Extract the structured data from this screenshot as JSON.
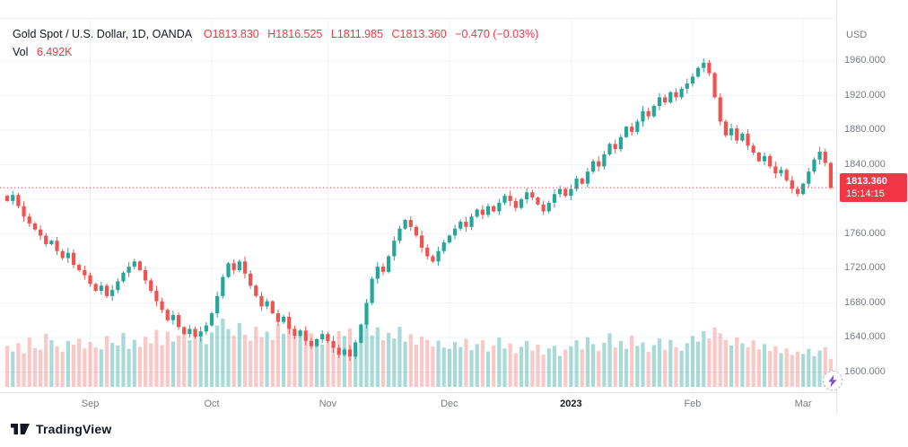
{
  "colors": {
    "up": "#26a69a",
    "down": "#ef5350",
    "accent_red": "#F23645",
    "vol_up": "rgba(38,166,154,0.40)",
    "vol_down": "rgba(239,83,80,0.32)",
    "grid": "#f0f3fa",
    "axis_text": "#787b86",
    "text": "#131722",
    "axis_border": "#e0e3eb",
    "bolt_purple": "#7e57c2"
  },
  "chart_data": {
    "type": "candlestick",
    "title": "Gold Spot / U.S. Dollar, 1D, OANDA",
    "legend": {
      "symbol": "Gold Spot / U.S. Dollar, 1D, OANDA",
      "o": "O1813.830",
      "h": "H1816.525",
      "l": "L1811.985",
      "c": "C1813.360",
      "change": "−0.470 (−0.03%)",
      "vol_label": "Vol",
      "vol_value": "6.492K"
    },
    "price_line": {
      "price": 1813.36,
      "display": "1813.360",
      "countdown": "15:14:15"
    },
    "y_axis": {
      "currency": "USD",
      "ticks": [
        1960,
        1920,
        1880,
        1840,
        1760,
        1720,
        1680,
        1640,
        1600
      ],
      "grid_min": 1600,
      "grid_max": 1960,
      "grid_step": 40
    },
    "x_axis": {
      "labels": [
        {
          "text": "Sep",
          "index": 15
        },
        {
          "text": "Oct",
          "index": 37
        },
        {
          "text": "Nov",
          "index": 58
        },
        {
          "text": "Dec",
          "index": 80
        },
        {
          "text": "2023",
          "index": 102,
          "year": true
        },
        {
          "text": "Feb",
          "index": 124
        },
        {
          "text": "Mar",
          "index": 144
        }
      ]
    },
    "closes": [
      1798,
      1805,
      1792,
      1780,
      1772,
      1765,
      1758,
      1748,
      1752,
      1740,
      1732,
      1738,
      1724,
      1718,
      1712,
      1702,
      1694,
      1700,
      1688,
      1695,
      1705,
      1715,
      1722,
      1728,
      1718,
      1706,
      1694,
      1682,
      1672,
      1660,
      1666,
      1652,
      1644,
      1650,
      1641,
      1647,
      1654,
      1668,
      1688,
      1710,
      1726,
      1718,
      1728,
      1714,
      1700,
      1688,
      1676,
      1682,
      1668,
      1658,
      1664,
      1650,
      1642,
      1648,
      1636,
      1630,
      1638,
      1644,
      1636,
      1628,
      1620,
      1626,
      1618,
      1634,
      1655,
      1680,
      1708,
      1722,
      1716,
      1734,
      1752,
      1766,
      1776,
      1768,
      1758,
      1744,
      1734,
      1728,
      1740,
      1750,
      1758,
      1766,
      1774,
      1768,
      1780,
      1788,
      1782,
      1792,
      1786,
      1796,
      1804,
      1798,
      1790,
      1800,
      1808,
      1802,
      1794,
      1786,
      1796,
      1806,
      1812,
      1804,
      1812,
      1824,
      1818,
      1832,
      1844,
      1838,
      1852,
      1864,
      1858,
      1872,
      1884,
      1878,
      1890,
      1902,
      1896,
      1908,
      1918,
      1912,
      1924,
      1918,
      1928,
      1934,
      1942,
      1952,
      1958,
      1946,
      1918,
      1890,
      1874,
      1882,
      1868,
      1876,
      1862,
      1854,
      1844,
      1850,
      1838,
      1830,
      1834,
      1822,
      1812,
      1806,
      1818,
      1832,
      1846,
      1855,
      1842,
      1813.36
    ],
    "volumes": [
      9.5,
      8.2,
      10.1,
      7.8,
      11.4,
      9.0,
      8.6,
      12.3,
      10.8,
      9.4,
      8.1,
      10.6,
      9.8,
      11.2,
      8.9,
      10.4,
      9.1,
      8.7,
      11.8,
      10.2,
      9.6,
      12.5,
      8.8,
      10.9,
      9.3,
      11.6,
      10.1,
      13.2,
      9.7,
      12.8,
      10.5,
      11.9,
      13.6,
      10.8,
      12.2,
      11.4,
      9.9,
      12.6,
      14.2,
      15.8,
      13.4,
      11.9,
      14.8,
      12.1,
      10.7,
      13.9,
      11.5,
      12.8,
      10.9,
      14.5,
      12.3,
      15.2,
      11.8,
      13.1,
      10.6,
      12.4,
      11.1,
      9.8,
      11.5,
      10.2,
      12.9,
      11.8,
      13.5,
      10.4,
      12.1,
      14.6,
      11.9,
      13.8,
      10.8,
      12.5,
      11.2,
      13.9,
      10.5,
      12.2,
      9.8,
      11.6,
      10.9,
      9.4,
      10.7,
      9.1,
      8.8,
      10.4,
      9.2,
      11.1,
      8.5,
      9.9,
      10.8,
      8.2,
      9.6,
      11.4,
      8.9,
      10.1,
      7.8,
      9.3,
      10.6,
      8.4,
      9.8,
      7.5,
      8.9,
      9.5,
      7.2,
      8.6,
      9.4,
      10.8,
      8.7,
      11.5,
      9.9,
      8.3,
      10.2,
      12.4,
      9.1,
      10.6,
      8.8,
      11.9,
      9.5,
      10.3,
      8.1,
      9.7,
      11.2,
      8.6,
      10.9,
      9.2,
      8.4,
      10.1,
      11.8,
      10.5,
      12.9,
      11.2,
      13.8,
      12.4,
      10.9,
      9.6,
      11.4,
      10.1,
      9.2,
      10.8,
      8.7,
      9.9,
      8.3,
      9.4,
      7.8,
      8.9,
      7.4,
      8.2,
      7.6,
      8.8,
      7.1,
      8.4,
      9.2,
      6.492
    ]
  },
  "branding": {
    "logo_text": "TradingView"
  }
}
